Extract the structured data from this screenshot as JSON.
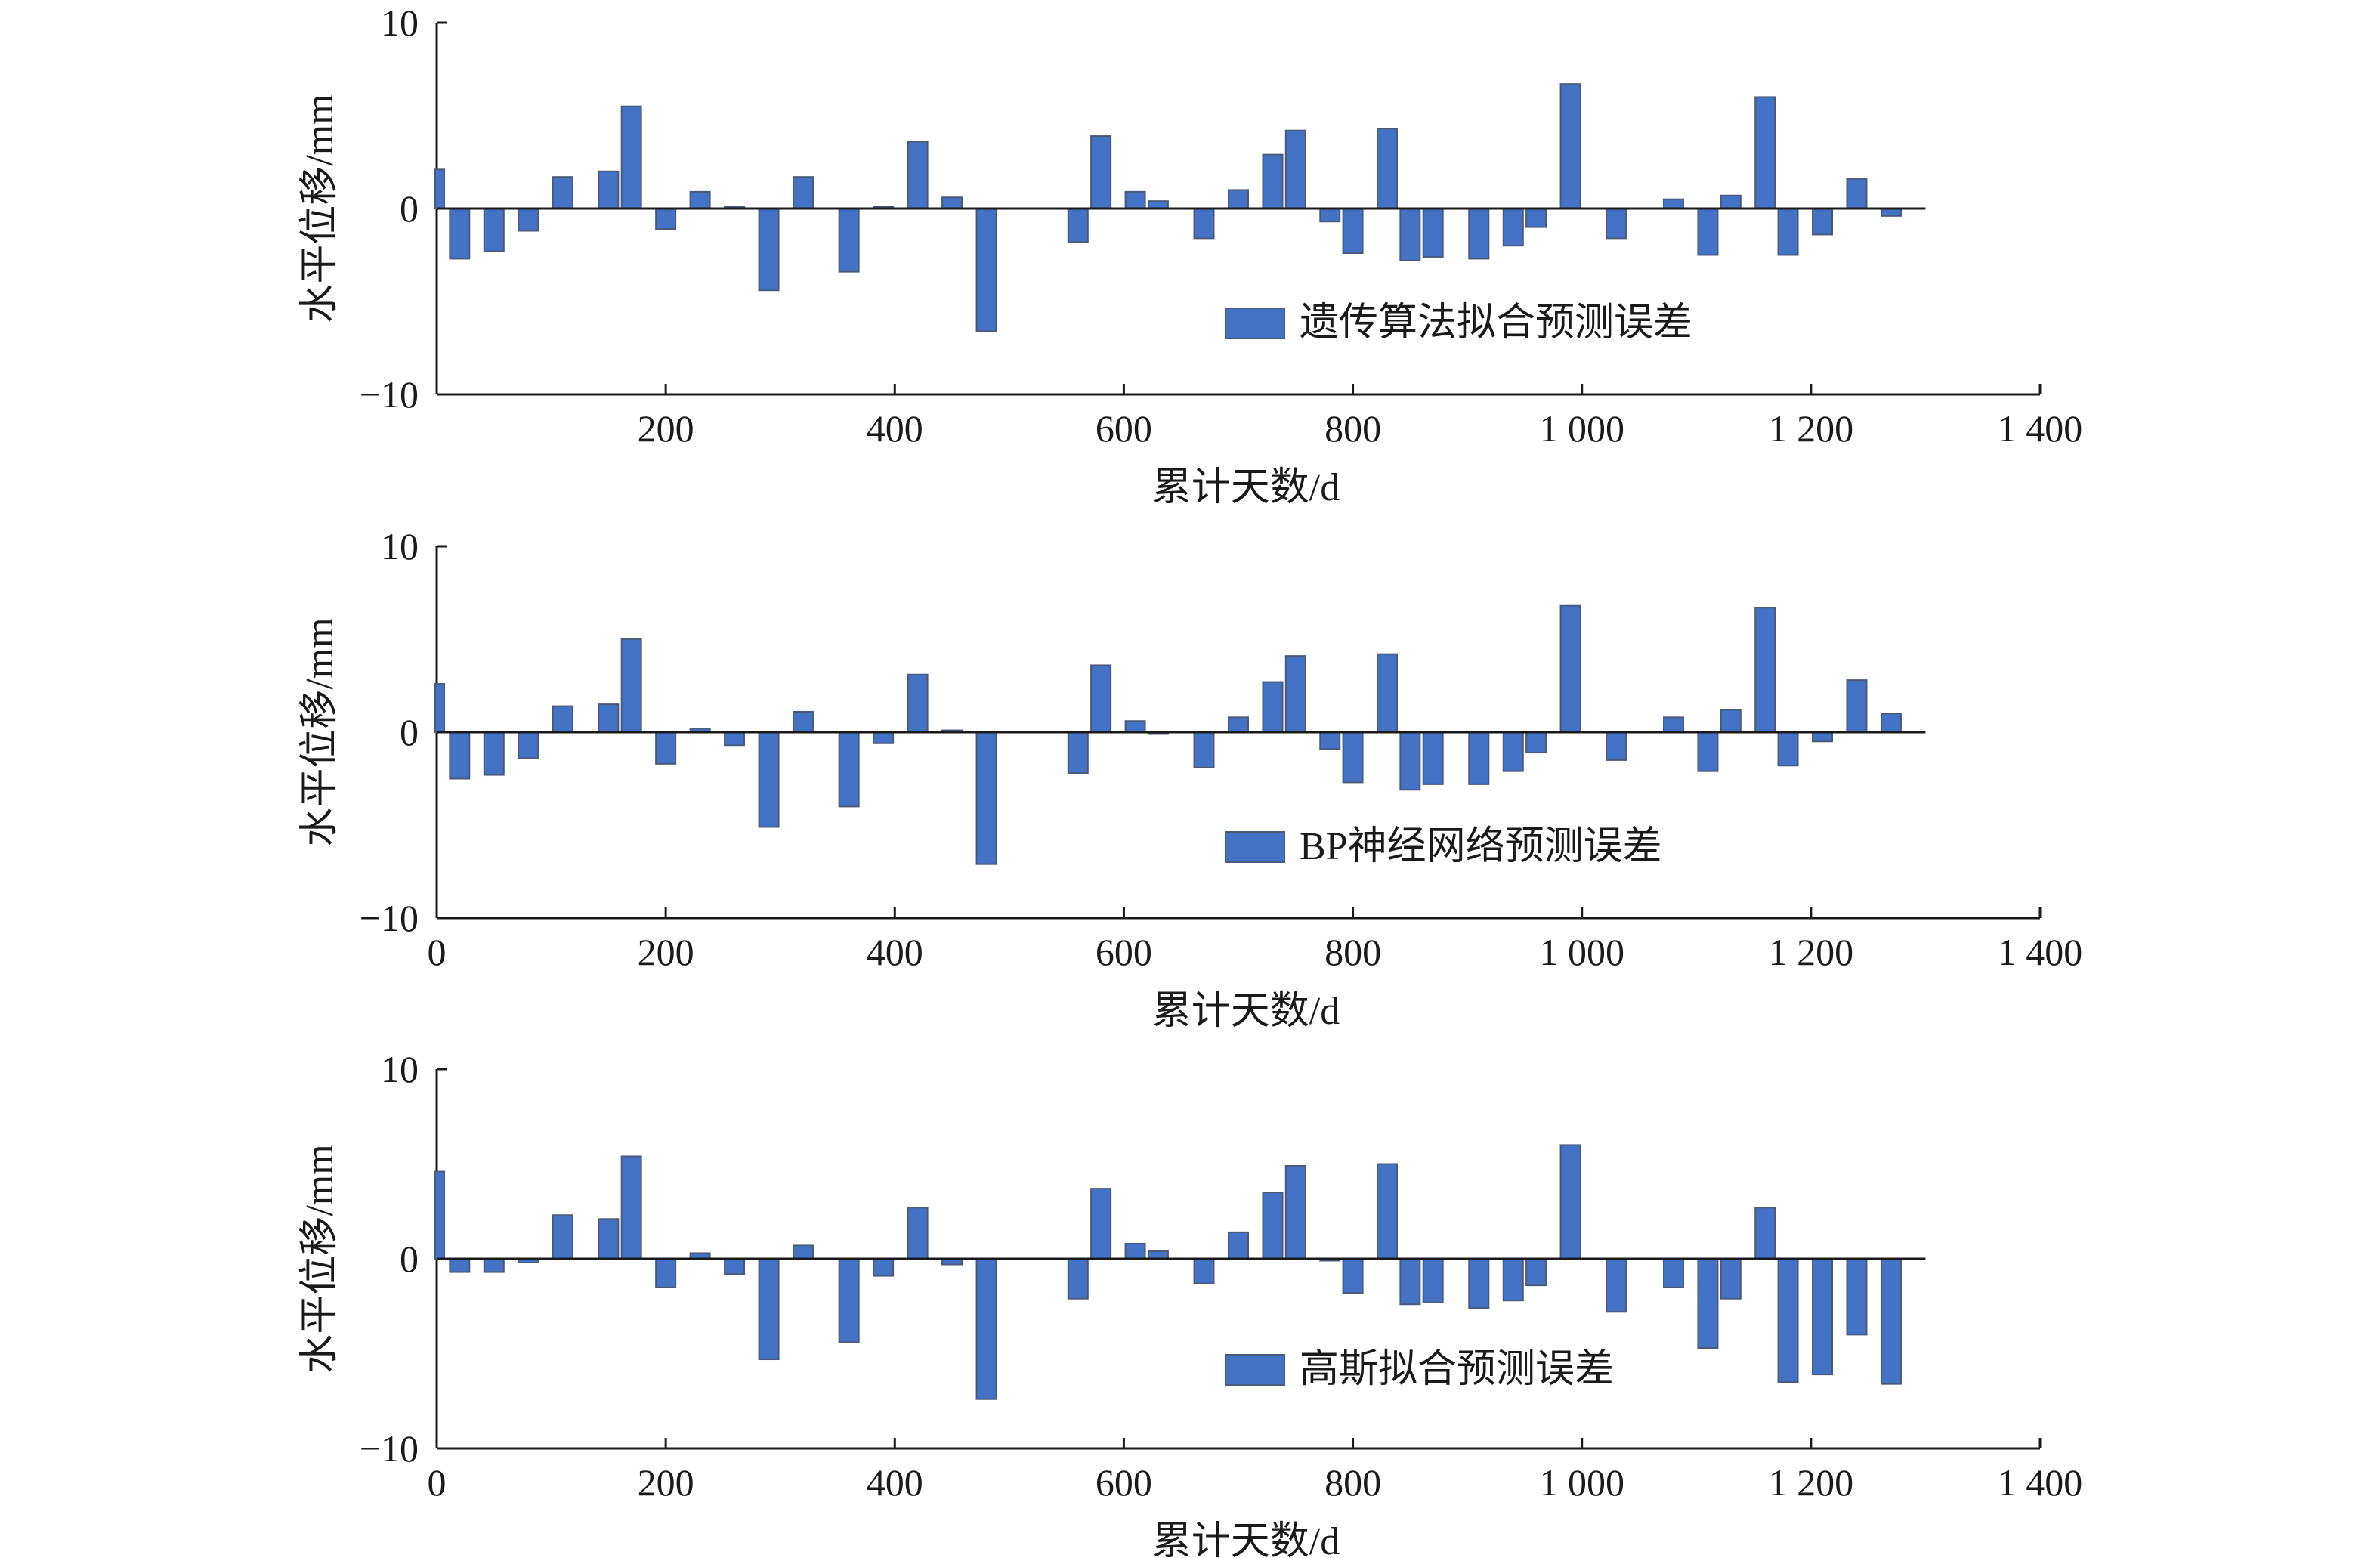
{
  "colors": {
    "bar": "#4472C4",
    "axis": "#1a1a1a",
    "background": "#ffffff"
  },
  "chart_data": [
    {
      "type": "bar",
      "xlabel": "累计天数/d",
      "ylabel": "水平位移/mm",
      "xlim": [
        0,
        1400
      ],
      "ylim": [
        -10,
        10
      ],
      "xticks": [
        "",
        "200",
        "400",
        "600",
        "800",
        "1 000",
        "1 200",
        "1 400"
      ],
      "yticks": [
        "−10",
        "0",
        "10"
      ],
      "legend_position": "bottom-center",
      "grid": false,
      "series": [
        {
          "name": "遗传算法拟合预测误差",
          "x": [
            0,
            20,
            50,
            80,
            110,
            150,
            170,
            200,
            230,
            260,
            290,
            320,
            360,
            390,
            420,
            450,
            480,
            560,
            580,
            610,
            630,
            670,
            700,
            730,
            750,
            780,
            800,
            830,
            850,
            870,
            910,
            940,
            960,
            990,
            1030,
            1050,
            1080,
            1110,
            1130,
            1160,
            1180,
            1210,
            1240,
            1270,
            1300
          ],
          "values": [
            2.1,
            -2.7,
            -2.3,
            -1.2,
            1.7,
            2.0,
            5.5,
            -1.1,
            0.9,
            0.1,
            -4.4,
            1.7,
            -3.4,
            0.1,
            3.6,
            0.6,
            -6.6,
            -1.8,
            3.9,
            0.9,
            0.4,
            -1.6,
            1.0,
            2.9,
            4.2,
            -0.7,
            -2.4,
            4.3,
            -2.8,
            -2.6,
            -2.7,
            -2.0,
            -1.0,
            6.7,
            -1.6,
            0.0,
            0.5,
            -2.5,
            0.7,
            6.0,
            -2.5,
            -1.4,
            1.6,
            -0.4,
            0.0
          ]
        }
      ]
    },
    {
      "type": "bar",
      "xlabel": "累计天数/d",
      "ylabel": "水平位移/mm",
      "xlim": [
        0,
        1400
      ],
      "ylim": [
        -10,
        10
      ],
      "xticks": [
        "0",
        "200",
        "400",
        "600",
        "800",
        "1 000",
        "1 200",
        "1 400"
      ],
      "yticks": [
        "−10",
        "0",
        "10"
      ],
      "legend_position": "bottom-center",
      "grid": false,
      "series": [
        {
          "name": "BP神经网络预测误差",
          "x": [
            0,
            20,
            50,
            80,
            110,
            150,
            170,
            200,
            230,
            260,
            290,
            320,
            360,
            390,
            420,
            450,
            480,
            560,
            580,
            610,
            630,
            670,
            700,
            730,
            750,
            780,
            800,
            830,
            850,
            870,
            910,
            940,
            960,
            990,
            1030,
            1050,
            1080,
            1110,
            1130,
            1160,
            1180,
            1210,
            1240,
            1270,
            1300
          ],
          "values": [
            2.6,
            -2.5,
            -2.3,
            -1.4,
            1.4,
            1.5,
            5.0,
            -1.7,
            0.2,
            -0.7,
            -5.1,
            1.1,
            -4.0,
            -0.6,
            3.1,
            0.1,
            -7.1,
            -2.2,
            3.6,
            0.6,
            -0.1,
            -1.9,
            0.8,
            2.7,
            4.1,
            -0.9,
            -2.7,
            4.2,
            -3.1,
            -2.8,
            -2.8,
            -2.1,
            -1.1,
            6.8,
            -1.5,
            0.0,
            0.8,
            -2.1,
            1.2,
            6.7,
            -1.8,
            -0.5,
            2.8,
            1.0,
            0.0
          ]
        }
      ]
    },
    {
      "type": "bar",
      "xlabel": "累计天数/d",
      "ylabel": "水平位移/mm",
      "xlim": [
        0,
        1400
      ],
      "ylim": [
        -10,
        10
      ],
      "xticks": [
        "0",
        "200",
        "400",
        "600",
        "800",
        "1 000",
        "1 200",
        "1 400"
      ],
      "yticks": [
        "−10",
        "0",
        "10"
      ],
      "legend_position": "bottom-center",
      "grid": false,
      "series": [
        {
          "name": "高斯拟合预测误差",
          "x": [
            0,
            20,
            50,
            80,
            110,
            150,
            170,
            200,
            230,
            260,
            290,
            320,
            360,
            390,
            420,
            450,
            480,
            560,
            580,
            610,
            630,
            670,
            700,
            730,
            750,
            780,
            800,
            830,
            850,
            870,
            910,
            940,
            960,
            990,
            1030,
            1050,
            1080,
            1110,
            1130,
            1160,
            1180,
            1210,
            1240,
            1270,
            1300
          ],
          "values": [
            4.6,
            -0.7,
            -0.7,
            -0.2,
            2.3,
            2.1,
            5.4,
            -1.5,
            0.3,
            -0.8,
            -5.3,
            0.7,
            -4.4,
            -0.9,
            2.7,
            -0.3,
            -7.4,
            -2.1,
            3.7,
            0.8,
            0.4,
            -1.3,
            1.4,
            3.5,
            4.9,
            -0.1,
            -1.8,
            5.0,
            -2.4,
            -2.3,
            -2.6,
            -2.2,
            -1.4,
            6.0,
            -2.8,
            0.0,
            -1.5,
            -4.7,
            -2.1,
            2.7,
            -6.5,
            -6.1,
            -4.0,
            -6.6,
            0.0
          ]
        }
      ]
    }
  ]
}
